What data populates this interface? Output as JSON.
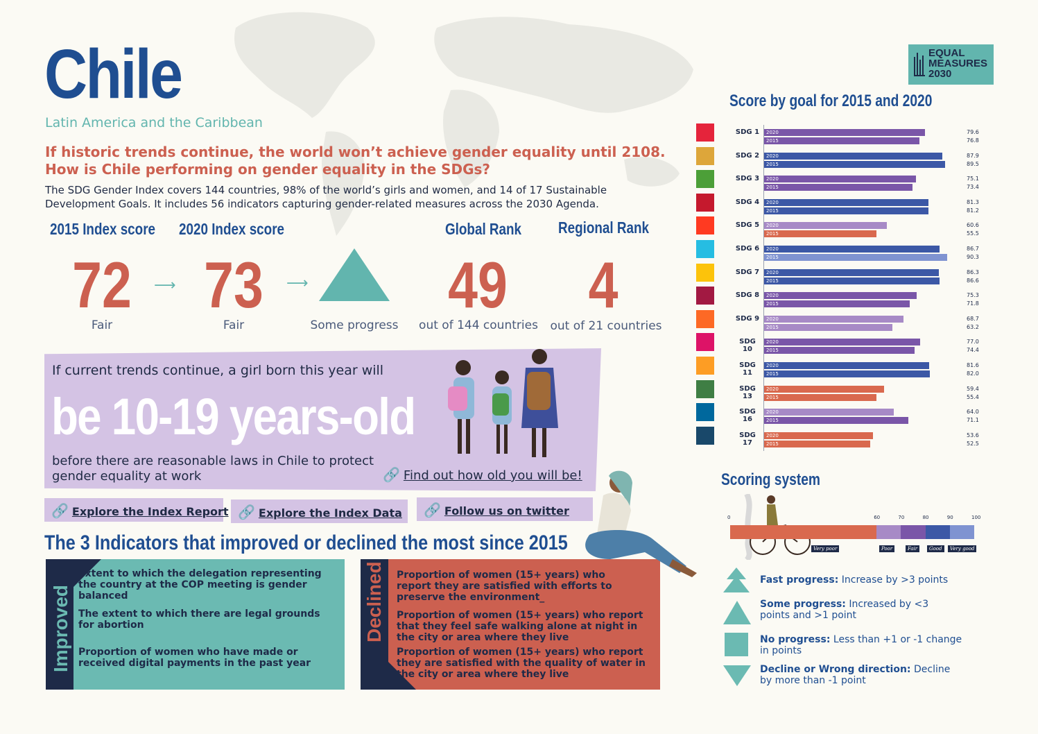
{
  "header": {
    "country": "Chile",
    "region": "Latin America and the Caribbean",
    "headline_1": "If historic trends continue, the world won’t achieve gender equality until 2108.",
    "headline_2": "How is Chile performing on gender equality in the SDGs?",
    "intro": "The SDG Gender Index covers 144 countries, 98% of the world’s girls and women, and 14 of 17 Sustainable Development Goals. It includes 56 indicators capturing gender-related measures across the 2030 Agenda."
  },
  "stats": {
    "score_2015_label": "2015 Index score",
    "score_2015": "72",
    "score_2015_sub": "Fair",
    "score_2020_label": "2020  Index score",
    "score_2020": "73",
    "score_2020_sub": "Fair",
    "progress_sub": "Some progress",
    "global_label": "Global Rank",
    "global_rank": "49",
    "global_sub": "out of 144 countries",
    "regional_label": "Regional Rank",
    "regional_rank": "4",
    "regional_sub": "out of 21 countries"
  },
  "girl_box": {
    "intro": "If current trends continue, a girl born this year will",
    "big": "be 10-19 years-old",
    "outro": "before there are reasonable laws in Chile to protect gender equality at work",
    "link": "Find out how old you will be!"
  },
  "links": {
    "report": "Explore the Index Report",
    "data": "Explore the Index Data",
    "twitter": "Follow us on twitter"
  },
  "indicators": {
    "title": "The 3 Indicators that improved or declined the most since 2015",
    "improved_label": "Improved",
    "declined_label": "Declined",
    "improved": [
      "Extent to which the delegation representing the country at the COP meeting is gender balanced",
      "The extent to which there are legal grounds for abortion",
      "Proportion of women who have made or received digital payments in the past year"
    ],
    "declined": [
      "Proportion of women (15+ years) who report they are satisfied with efforts to preserve the environment_",
      "Proportion of women (15+ years) who report that they feel safe walking alone at night in the city or area where they live",
      "Proportion of women (15+ years)  who report they are satisfied with the quality of water in the city or area where they live"
    ]
  },
  "logo": {
    "line1": "EQUAL",
    "line2": "MEASURES",
    "line3": "2030"
  },
  "chart_data": {
    "type": "bar",
    "title": "Score by goal for 2015 and 2020",
    "xlim": [
      0,
      100
    ],
    "categories": [
      "SDG 1",
      "SDG 2",
      "SDG 3",
      "SDG 4",
      "SDG 5",
      "SDG 6",
      "SDG 7",
      "SDG 8",
      "SDG 9",
      "SDG 10",
      "SDG 11",
      "SDG 13",
      "SDG 16",
      "SDG 17"
    ],
    "series": [
      {
        "name": "2020",
        "values": [
          79.6,
          87.9,
          75.1,
          81.3,
          60.6,
          86.7,
          86.3,
          75.3,
          68.7,
          77.0,
          81.6,
          59.4,
          64.0,
          53.6
        ]
      },
      {
        "name": "2015",
        "values": [
          76.8,
          89.5,
          73.4,
          81.2,
          55.5,
          90.3,
          86.6,
          71.8,
          63.2,
          74.4,
          82.0,
          55.4,
          71.1,
          52.5
        ]
      }
    ],
    "value_labels_2020": [
      "79.6",
      "87.9",
      "75.1",
      "81.3",
      "60.6",
      "86.7",
      "86.3",
      "75.3",
      "68.7",
      "77.0",
      "81.6",
      "59.4",
      "64.0",
      "53.6"
    ],
    "value_labels_2015": [
      "76.8",
      "89.5",
      "73.4",
      "81.2",
      "55.5",
      "90.3",
      "86.6",
      "71.8",
      "63.2",
      "74.4",
      "82.0",
      "55.4",
      "71.1",
      "52.5"
    ],
    "icon_colors": [
      "#e5243b",
      "#dda63a",
      "#4c9f38",
      "#c5192d",
      "#ff3a21",
      "#26bde2",
      "#fcc30b",
      "#a21942",
      "#fd6925",
      "#dd1367",
      "#fd9d24",
      "#3f7e44",
      "#00689d",
      "#19486a"
    ],
    "bands": [
      {
        "name": "Very poor",
        "min": 0,
        "max": 60,
        "color": "#d9694e"
      },
      {
        "name": "Poor",
        "min": 60,
        "max": 70,
        "color": "#a78ac6"
      },
      {
        "name": "Fair",
        "min": 70,
        "max": 80,
        "color": "#7a56a8"
      },
      {
        "name": "Good",
        "min": 80,
        "max": 90,
        "color": "#3c58a6"
      },
      {
        "name": "Very good",
        "min": 90,
        "max": 100,
        "color": "#7f93d1"
      }
    ]
  },
  "scoring": {
    "title": "Scoring system",
    "ticks": [
      "0",
      "60",
      "70",
      "80",
      "90",
      "100"
    ],
    "band_labels": [
      "Very poor",
      "Poor",
      "Fair",
      "Good",
      "Very good"
    ],
    "legend": [
      {
        "bold": "Fast progress:",
        "text": " Increase by >3 points"
      },
      {
        "bold": "Some progress:",
        "text": " Increased by <3 points and >1 point"
      },
      {
        "bold": "No progress:",
        "text": " Less than +1 or -1 change in points"
      },
      {
        "bold": "Decline or Wrong direction:",
        "text": " Decline by more than -1 point"
      }
    ]
  }
}
